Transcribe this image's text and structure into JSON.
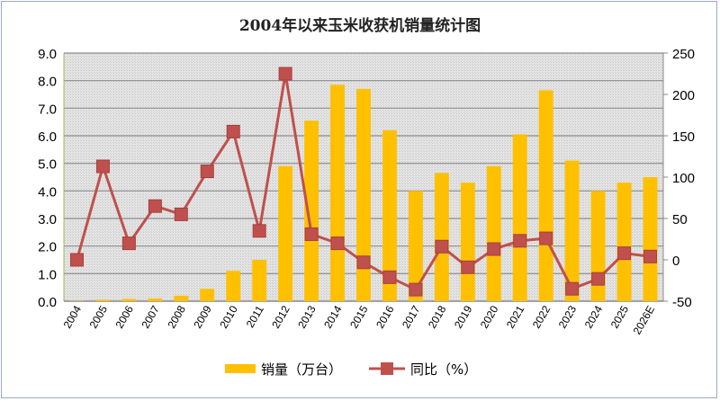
{
  "chart_data": {
    "type": "bar+line",
    "title": "2004年以来玉米收获机销量统计图",
    "categories": [
      "2004",
      "2005",
      "2006",
      "2007",
      "2008",
      "2009",
      "2010",
      "2011",
      "2012",
      "2013",
      "2014",
      "2015",
      "2016",
      "2017",
      "2018",
      "2019",
      "2020",
      "2021",
      "2022",
      "2023",
      "2024",
      "2025",
      "2026E"
    ],
    "series": [
      {
        "name": "销量（万台）",
        "type": "bar",
        "axis": "left",
        "color": "#FFC000",
        "values": [
          0.01,
          0.05,
          0.08,
          0.1,
          0.2,
          0.45,
          1.1,
          1.5,
          4.9,
          6.55,
          7.85,
          7.7,
          6.2,
          4.0,
          4.65,
          4.3,
          4.9,
          6.05,
          7.65,
          5.1,
          4.0,
          4.3,
          4.5
        ]
      },
      {
        "name": "同比（%）",
        "type": "line",
        "axis": "right",
        "color": "#C0504D",
        "values": [
          0,
          113,
          20,
          65,
          55,
          107,
          155,
          35,
          225,
          31,
          20,
          -3,
          -21,
          -36,
          16,
          -9,
          13,
          23,
          26,
          -35,
          -23,
          8,
          4
        ]
      }
    ],
    "left_axis": {
      "ylim": [
        0,
        9
      ],
      "ticks": [
        "0.0",
        "1.0",
        "2.0",
        "3.0",
        "4.0",
        "5.0",
        "6.0",
        "7.0",
        "8.0",
        "9.0"
      ]
    },
    "right_axis": {
      "ylim": [
        -50,
        250
      ],
      "ticks": [
        "-50",
        "0",
        "50",
        "100",
        "150",
        "200",
        "250"
      ]
    },
    "grid": true,
    "legend_position": "bottom"
  }
}
